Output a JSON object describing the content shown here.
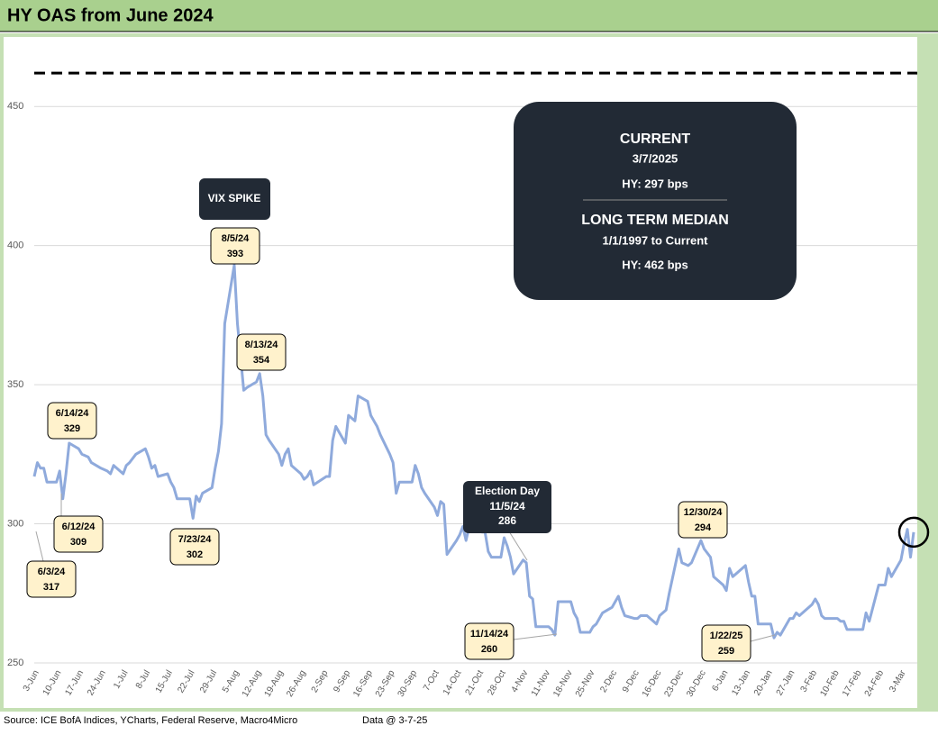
{
  "chart_data": {
    "type": "line",
    "title": "HY OAS from June 2024",
    "source": "Source: ICE BofA Indices, YCharts, Federal Reserve, Macro4Micro",
    "data_date": "Data @ 3-7-25",
    "vix_label": "VIX SPIKE",
    "ylim": [
      250,
      475
    ],
    "yticks": [
      250,
      300,
      350,
      400,
      450
    ],
    "grid": true,
    "reference_line": {
      "value": 462,
      "color": "#000000"
    },
    "xticks": [
      "3-Jun",
      "10-Jun",
      "17-Jun",
      "24-Jun",
      "1-Jul",
      "8-Jul",
      "15-Jul",
      "22-Jul",
      "29-Jul",
      "5-Aug",
      "12-Aug",
      "19-Aug",
      "26-Aug",
      "2-Sep",
      "9-Sep",
      "16-Sep",
      "23-Sep",
      "30-Sep",
      "7-Oct",
      "14-Oct",
      "21-Oct",
      "28-Oct",
      "4-Nov",
      "11-Nov",
      "18-Nov",
      "25-Nov",
      "2-Dec",
      "9-Dec",
      "16-Dec",
      "23-Dec",
      "30-Dec",
      "6-Jan",
      "13-Jan",
      "20-Jan",
      "27-Jan",
      "3-Feb",
      "10-Feb",
      "17-Feb",
      "24-Feb",
      "3-Mar"
    ],
    "x": [
      "3-Jun",
      "4-Jun",
      "5-Jun",
      "6-Jun",
      "7-Jun",
      "10-Jun",
      "11-Jun",
      "12-Jun",
      "13-Jun",
      "14-Jun",
      "17-Jun",
      "18-Jun",
      "20-Jun",
      "21-Jun",
      "24-Jun",
      "26-Jun",
      "27-Jun",
      "28-Jun",
      "1-Jul",
      "2-Jul",
      "3-Jul",
      "5-Jul",
      "8-Jul",
      "9-Jul",
      "10-Jul",
      "11-Jul",
      "12-Jul",
      "15-Jul",
      "16-Jul",
      "17-Jul",
      "18-Jul",
      "19-Jul",
      "22-Jul",
      "23-Jul",
      "24-Jul",
      "25-Jul",
      "26-Jul",
      "29-Jul",
      "30-Jul",
      "31-Jul",
      "1-Aug",
      "2-Aug",
      "5-Aug",
      "6-Aug",
      "7-Aug",
      "8-Aug",
      "9-Aug",
      "12-Aug",
      "13-Aug",
      "14-Aug",
      "15-Aug",
      "16-Aug",
      "19-Aug",
      "20-Aug",
      "21-Aug",
      "22-Aug",
      "23-Aug",
      "26-Aug",
      "27-Aug",
      "28-Aug",
      "29-Aug",
      "30-Aug",
      "3-Sep",
      "4-Sep",
      "5-Sep",
      "6-Sep",
      "9-Sep",
      "10-Sep",
      "11-Sep",
      "12-Sep",
      "13-Sep",
      "16-Sep",
      "17-Sep",
      "18-Sep",
      "19-Sep",
      "20-Sep",
      "23-Sep",
      "24-Sep",
      "25-Sep",
      "26-Sep",
      "27-Sep",
      "30-Sep",
      "1-Oct",
      "2-Oct",
      "3-Oct",
      "4-Oct",
      "7-Oct",
      "8-Oct",
      "9-Oct",
      "10-Oct",
      "11-Oct",
      "14-Oct",
      "15-Oct",
      "16-Oct",
      "17-Oct",
      "18-Oct",
      "21-Oct",
      "22-Oct",
      "23-Oct",
      "24-Oct",
      "25-Oct",
      "28-Oct",
      "29-Oct",
      "30-Oct",
      "31-Oct",
      "1-Nov",
      "4-Nov",
      "5-Nov",
      "6-Nov",
      "7-Nov",
      "8-Nov",
      "11-Nov",
      "12-Nov",
      "13-Nov",
      "14-Nov",
      "15-Nov",
      "18-Nov",
      "19-Nov",
      "20-Nov",
      "21-Nov",
      "22-Nov",
      "25-Nov",
      "26-Nov",
      "27-Nov",
      "29-Nov",
      "2-Dec",
      "3-Dec",
      "4-Dec",
      "5-Dec",
      "6-Dec",
      "9-Dec",
      "10-Dec",
      "11-Dec",
      "12-Dec",
      "13-Dec",
      "16-Dec",
      "17-Dec",
      "18-Dec",
      "19-Dec",
      "20-Dec",
      "23-Dec",
      "24-Dec",
      "26-Dec",
      "27-Dec",
      "30-Dec",
      "31-Dec",
      "2-Jan",
      "3-Jan",
      "6-Jan",
      "7-Jan",
      "8-Jan",
      "9-Jan",
      "10-Jan",
      "13-Jan",
      "14-Jan",
      "15-Jan",
      "16-Jan",
      "17-Jan",
      "21-Jan",
      "22-Jan",
      "23-Jan",
      "24-Jan",
      "27-Jan",
      "28-Jan",
      "29-Jan",
      "30-Jan",
      "31-Jan",
      "3-Feb",
      "4-Feb",
      "5-Feb",
      "6-Feb",
      "7-Feb",
      "10-Feb",
      "11-Feb",
      "12-Feb",
      "13-Feb",
      "14-Feb",
      "18-Feb",
      "19-Feb",
      "20-Feb",
      "21-Feb",
      "24-Feb",
      "25-Feb",
      "26-Feb",
      "27-Feb",
      "28-Feb",
      "3-Mar",
      "4-Mar",
      "5-Mar",
      "6-Mar",
      "7-Mar"
    ],
    "series": [
      {
        "name": "HY OAS",
        "color": "#8faadc",
        "values": [
          317,
          322,
          320,
          320,
          315,
          315,
          319,
          309,
          318,
          329,
          327,
          325,
          324,
          322,
          320,
          319,
          318,
          321,
          318,
          321,
          322,
          325,
          327,
          324,
          320,
          321,
          317,
          318,
          315,
          313,
          309,
          309,
          309,
          302,
          310,
          308,
          311,
          313,
          320,
          326,
          336,
          372,
          393,
          372,
          360,
          348,
          349,
          351,
          354,
          346,
          332,
          330,
          325,
          321,
          325,
          327,
          321,
          318,
          316,
          317,
          319,
          314,
          317,
          317,
          330,
          335,
          329,
          339,
          338,
          337,
          346,
          344,
          339,
          337,
          335,
          332,
          325,
          322,
          311,
          315,
          315,
          315,
          321,
          318,
          313,
          311,
          306,
          303,
          308,
          307,
          289,
          294,
          296,
          299,
          294,
          299,
          298,
          297,
          297,
          290,
          288,
          288,
          295,
          292,
          288,
          282,
          287,
          286,
          274,
          273,
          263,
          263,
          263,
          262,
          260,
          272,
          272,
          272,
          268,
          266,
          261,
          261,
          263,
          264,
          268,
          270,
          272,
          274,
          270,
          267,
          266,
          266,
          267,
          267,
          267,
          264,
          267,
          268,
          269,
          275,
          291,
          286,
          285,
          286,
          294,
          291,
          288,
          281,
          278,
          276,
          284,
          281,
          282,
          285,
          279,
          274,
          274,
          264,
          264,
          259,
          261,
          260,
          266,
          266,
          268,
          267,
          268,
          271,
          273,
          271,
          267,
          266,
          266,
          266,
          265,
          265,
          262,
          262,
          262,
          268,
          265,
          278,
          278,
          278,
          284,
          281,
          287,
          293,
          298,
          288,
          297
        ]
      }
    ],
    "annotations": [
      {
        "date": "6/3/24",
        "value": 317
      },
      {
        "date": "6/12/24",
        "value": 309
      },
      {
        "date": "6/14/24",
        "value": 329
      },
      {
        "date": "7/23/24",
        "value": 302
      },
      {
        "date": "8/5/24",
        "value": 393
      },
      {
        "date": "8/13/24",
        "value": 354
      },
      {
        "date": "11/14/24",
        "value": 260
      },
      {
        "date": "12/30/24",
        "value": 294
      },
      {
        "date": "1/22/25",
        "value": 259
      }
    ],
    "election": {
      "title": "Election Day",
      "date": "11/5/24",
      "value": 286
    },
    "info_box": {
      "current_heading": "CURRENT",
      "current_date": "3/7/2025",
      "current_value": "HY: 297 bps",
      "median_heading": "LONG TERM MEDIAN",
      "median_period": "1/1/1997 to Current",
      "median_value": "HY: 462 bps"
    }
  }
}
